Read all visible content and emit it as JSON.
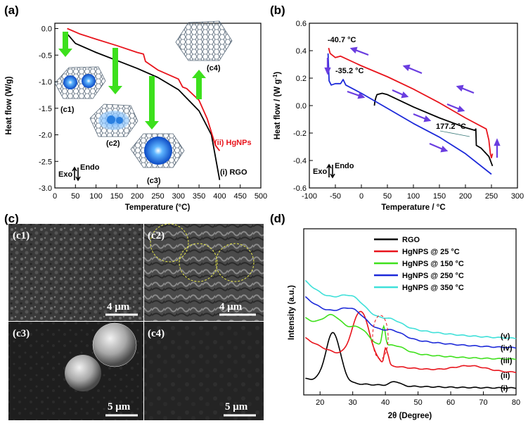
{
  "panels": {
    "a": "(a)",
    "b": "(b)",
    "c": "(c)",
    "d": "(d)"
  },
  "chart_data": [
    {
      "type": "line",
      "xlabel": "Temperature (°C)",
      "ylabel": "Heat flow (W/g)",
      "xlim": [
        0,
        500
      ],
      "ylim": [
        -3.0,
        0.1
      ],
      "xticks": [
        0,
        50,
        100,
        150,
        200,
        250,
        300,
        350,
        400,
        450,
        500
      ],
      "yticks": [
        0.0,
        -0.5,
        -1.0,
        -1.5,
        -2.0,
        -2.5,
        -3.0
      ],
      "series": [
        {
          "name": "(i) RGO",
          "color": "#000000",
          "x": [
            30,
            50,
            100,
            150,
            200,
            250,
            300,
            350,
            380,
            400
          ],
          "y": [
            -0.1,
            -0.28,
            -0.45,
            -0.6,
            -0.75,
            -0.92,
            -1.15,
            -1.55,
            -2.0,
            -2.85
          ]
        },
        {
          "name": "(ii) HgNPs",
          "color": "#e8141c",
          "x": [
            30,
            60,
            100,
            150,
            200,
            215,
            220,
            250,
            300,
            310,
            320,
            350,
            370,
            390,
            400
          ],
          "y": [
            0.0,
            -0.1,
            -0.2,
            -0.32,
            -0.45,
            -0.48,
            -0.62,
            -0.78,
            -0.95,
            -1.1,
            -1.13,
            -1.35,
            -1.7,
            -2.2,
            -2.3
          ]
        }
      ],
      "exo": "Exo",
      "endo": "Endo",
      "insets": [
        "(c1)",
        "(c2)",
        "(c3)",
        "(c4)"
      ]
    },
    {
      "type": "line",
      "xlabel": "Temperature / °C",
      "ylabel": "Heat flow / (W g",
      "ylabel_sup": "-1",
      "ylabel_end": ")",
      "xlim": [
        -100,
        300
      ],
      "ylim": [
        -0.6,
        0.6
      ],
      "xticks": [
        -100,
        -50,
        0,
        50,
        100,
        150,
        200,
        250,
        300
      ],
      "yticks": [
        0.6,
        0.4,
        0.2,
        0.0,
        -0.2,
        -0.4,
        -0.6
      ],
      "series": [
        {
          "color": "#e8141c",
          "x": [
            -63,
            -60,
            -50,
            -40,
            0,
            50,
            100,
            150,
            200,
            240,
            245,
            248,
            250,
            252
          ],
          "y": [
            0.42,
            0.38,
            0.35,
            0.36,
            0.29,
            0.21,
            0.12,
            0.02,
            -0.09,
            -0.17,
            -0.25,
            -0.35,
            -0.38,
            -0.35
          ]
        },
        {
          "color": "#000000",
          "x": [
            25,
            26,
            28,
            30,
            40,
            50,
            100,
            150,
            200,
            218,
            220,
            221,
            230,
            245,
            252
          ],
          "y": [
            0.0,
            0.03,
            0.06,
            0.08,
            0.09,
            0.08,
            -0.01,
            -0.09,
            -0.16,
            -0.18,
            -0.17,
            -0.29,
            -0.31,
            -0.37,
            -0.44
          ]
        },
        {
          "color": "#1c29d9",
          "x": [
            -64,
            -62,
            -58,
            -50,
            -40,
            -35,
            -30,
            0,
            50,
            100,
            150,
            200,
            250
          ],
          "y": [
            0.38,
            0.18,
            0.15,
            0.16,
            0.16,
            0.19,
            0.15,
            0.09,
            -0.02,
            -0.13,
            -0.23,
            -0.35,
            -0.5
          ]
        }
      ],
      "annotations": [
        "-40.7 °C",
        "-35.2 °C",
        "177.2 °C"
      ],
      "exo": "Exo",
      "endo": "Endo"
    },
    {
      "type": "line",
      "xlabel": "2θ (Degree)",
      "ylabel": "Intensity (a.u.)",
      "xlim": [
        15,
        80
      ],
      "xticks": [
        20,
        30,
        40,
        50,
        60,
        70,
        80
      ],
      "series": [
        {
          "name": "RGO",
          "color": "#000000",
          "tag": "(i)"
        },
        {
          "name": "HgNPS @ 25 °C",
          "color": "#e8141c",
          "tag": "(ii)"
        },
        {
          "name": "HgNPS @ 150 °C",
          "color": "#3fe01c",
          "tag": "(iii)"
        },
        {
          "name": "HgNPS @ 250 °C",
          "color": "#1c29d9",
          "tag": "(iv)"
        },
        {
          "name": "HgNPS @ 350 °C",
          "color": "#3fe0d9",
          "tag": "(v)"
        }
      ]
    }
  ],
  "sem": {
    "c1": {
      "tag": "(c1)",
      "scale": "4 μm"
    },
    "c2": {
      "tag": "(c2)",
      "scale": "4 μm"
    },
    "c3": {
      "tag": "(c3)",
      "scale": "5 μm"
    },
    "c4": {
      "tag": "(c4)",
      "scale": "5 μm"
    }
  }
}
